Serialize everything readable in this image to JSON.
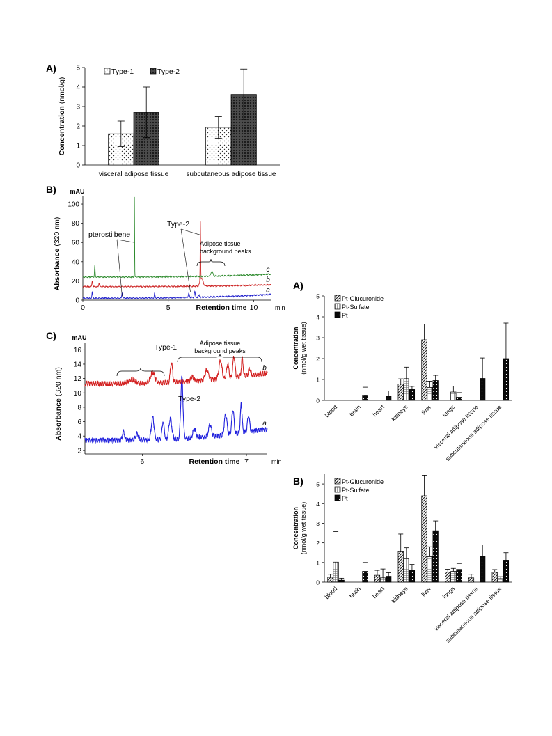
{
  "chart_data": [
    {
      "panel": "A)",
      "type": "bar",
      "ylabel": "Concentration",
      "ylabel_unit": "(nmol/g)",
      "ylim": [
        0,
        5
      ],
      "yticks": [
        0,
        1,
        2,
        3,
        4,
        5
      ],
      "categories": [
        "visceral adipose tissue",
        "subcutaneous adipose tissue"
      ],
      "series": [
        {
          "name": "Type-1",
          "values": [
            1.6,
            1.93
          ],
          "errors": [
            0.65,
            0.55
          ],
          "pattern": "dots"
        },
        {
          "name": "Type-2",
          "values": [
            2.7,
            3.62
          ],
          "errors": [
            1.3,
            1.3
          ],
          "pattern": "crosshatch"
        }
      ],
      "legend": "top-left"
    },
    {
      "panel": "B)",
      "type": "line",
      "unit": "mAU",
      "ylabel": "Absorbance",
      "ylabel_unit": "(320 nm)",
      "xlabel": "Retention time",
      "xunit": "min",
      "xlim": [
        0,
        11
      ],
      "xticks": [
        0,
        5,
        10
      ],
      "ylim": [
        0,
        108
      ],
      "yticks": [
        0,
        20,
        40,
        60,
        80,
        100
      ],
      "series": [
        {
          "name": "a",
          "color": "#2222cc",
          "baseline": 2,
          "end": 6,
          "peaks": [
            [
              0.55,
              7,
              0.03
            ],
            [
              2.3,
              6,
              0.03
            ],
            [
              4.2,
              5,
              0.03
            ],
            [
              6.2,
              4,
              0.05
            ],
            [
              6.55,
              6,
              0.04
            ],
            [
              6.8,
              2,
              0.05
            ]
          ]
        },
        {
          "name": "b",
          "color": "#cc2222",
          "baseline": 14,
          "end": 16,
          "peaks": [
            [
              0.55,
              6,
              0.03
            ],
            [
              0.95,
              4,
              0.03
            ],
            [
              6.88,
              62,
              0.02
            ],
            [
              6.95,
              8,
              0.12
            ]
          ]
        },
        {
          "name": "c",
          "color": "#2e8b2e",
          "baseline": 24,
          "end": 27,
          "peaks": [
            [
              0.7,
              12,
              0.025
            ],
            [
              3.02,
              84,
              0.014
            ],
            [
              7.55,
              5,
              0.08
            ]
          ]
        }
      ],
      "annotations": [
        "pterostilbene",
        "Type-2",
        "Adipose tissue",
        "background peaks"
      ]
    },
    {
      "panel": "C)",
      "type": "line",
      "unit": "mAU",
      "ylabel": "Absorbance",
      "ylabel_unit": "(320 nm)",
      "xlabel": "Retention time",
      "xunit": "min",
      "xlim": [
        5.45,
        7.2
      ],
      "xticks": [
        6,
        7
      ],
      "ylim": [
        1.5,
        17
      ],
      "yticks": [
        2,
        4,
        6,
        8,
        10,
        12,
        14,
        16
      ],
      "series": [
        {
          "name": "a",
          "color": "#2222dd",
          "baseline": 3.4,
          "end": 5.0,
          "peaks": [
            [
              5.82,
              1.2,
              0.015
            ],
            [
              5.95,
              0.9,
              0.02
            ],
            [
              6.1,
              3.2,
              0.018
            ],
            [
              6.2,
              2.4,
              0.015
            ],
            [
              6.27,
              2.8,
              0.02
            ],
            [
              6.38,
              8.5,
              0.015
            ],
            [
              6.5,
              1.3,
              0.02
            ],
            [
              6.65,
              1.6,
              0.02
            ],
            [
              6.8,
              2.8,
              0.018
            ],
            [
              6.87,
              3.4,
              0.015
            ],
            [
              6.95,
              4.0,
              0.012
            ],
            [
              7.02,
              2.2,
              0.015
            ]
          ]
        },
        {
          "name": "b",
          "color": "#d32222",
          "baseline": 11.3,
          "end": 12.8,
          "peaks": [
            [
              5.9,
              0.5,
              0.05
            ],
            [
              6.1,
              1.5,
              0.03
            ],
            [
              6.28,
              2.8,
              0.015
            ],
            [
              6.48,
              0.6,
              0.02
            ],
            [
              6.62,
              1.4,
              0.025
            ],
            [
              6.75,
              2.6,
              0.02
            ],
            [
              6.82,
              2.0,
              0.015
            ],
            [
              6.88,
              3.0,
              0.015
            ],
            [
              6.96,
              2.5,
              0.012
            ],
            [
              7.03,
              1.0,
              0.015
            ]
          ]
        }
      ],
      "annotations": [
        "Type-1",
        "Type-2",
        "Adipose tissue",
        "background peaks"
      ]
    },
    {
      "panel": "A)",
      "type": "bar",
      "ylabel": "Concentration",
      "ylabel_unit": "(nmol/g wet tissue)",
      "ylim": [
        0,
        5
      ],
      "yticks": [
        0,
        1,
        2,
        3,
        4,
        5
      ],
      "categories": [
        "blood",
        "brain",
        "heart",
        "kidneys",
        "liver",
        "lungs",
        "visceral adipose tissue",
        "subcutaneous adipose tissue"
      ],
      "series": [
        {
          "name": "Pt-Glucuronide",
          "values": [
            0,
            0,
            0,
            0.78,
            2.9,
            0,
            0,
            0
          ],
          "errors": [
            0,
            0,
            0,
            0.25,
            0.75,
            0,
            0,
            0
          ],
          "pattern": "diagonal"
        },
        {
          "name": "Pt-Sulfate",
          "values": [
            0,
            0,
            0,
            1.04,
            0.62,
            0.4,
            0,
            0
          ],
          "errors": [
            0,
            0,
            0,
            0.55,
            0.3,
            0.28,
            0,
            0
          ],
          "pattern": "grid"
        },
        {
          "name": "Pt",
          "values": [
            0,
            0.25,
            0.2,
            0.52,
            0.95,
            0.15,
            1.05,
            2.0
          ],
          "errors": [
            0,
            0.38,
            0.25,
            0.15,
            0.25,
            0.22,
            0.98,
            1.7
          ],
          "pattern": "dots-dark"
        }
      ],
      "legend": "top-left"
    },
    {
      "panel": "B)",
      "type": "bar",
      "ylabel": "Concentration",
      "ylabel_unit": "(nmol/g wet tissue)",
      "ylim": [
        0,
        5.5
      ],
      "yticks": [
        0,
        1,
        2,
        3,
        4,
        5
      ],
      "categories": [
        "blood",
        "brain",
        "heart",
        "kidneys",
        "liver",
        "lungs",
        "visceral adipose tissue",
        "subcutaneous adipose tissue"
      ],
      "series": [
        {
          "name": "Pt-Glucuronide",
          "values": [
            0.25,
            0,
            0.35,
            1.55,
            4.4,
            0.52,
            0.22,
            0.5
          ],
          "errors": [
            0.15,
            0,
            0.25,
            0.9,
            1.05,
            0.14,
            0.18,
            0.14
          ],
          "pattern": "diagonal"
        },
        {
          "name": "Pt-Sulfate",
          "values": [
            1.02,
            0,
            0.22,
            1.2,
            1.3,
            0.55,
            0,
            0.18
          ],
          "errors": [
            1.55,
            0,
            0.45,
            0.55,
            0.5,
            0.15,
            0,
            0.1
          ],
          "pattern": "grid"
        },
        {
          "name": "Pt",
          "values": [
            0.1,
            0.55,
            0.3,
            0.62,
            2.62,
            0.65,
            1.32,
            1.12
          ],
          "errors": [
            0.1,
            0.45,
            0.18,
            0.28,
            0.5,
            0.3,
            0.58,
            0.38
          ],
          "pattern": "dots-dark"
        }
      ],
      "legend": "top-left"
    }
  ]
}
